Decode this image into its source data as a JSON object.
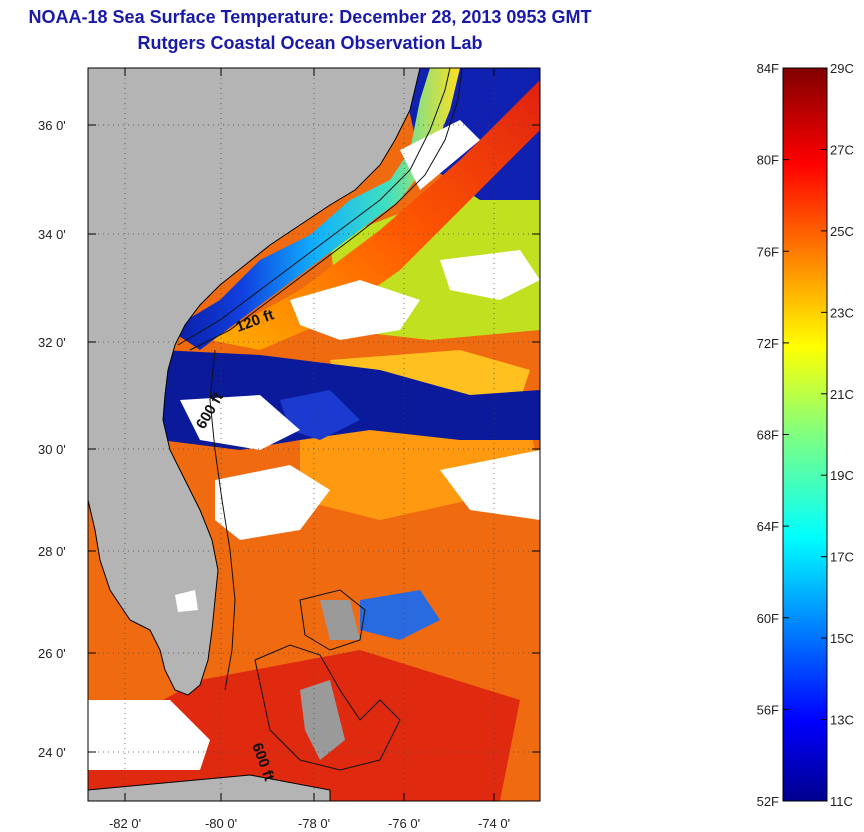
{
  "title": {
    "line1": "NOAA-18 Sea Surface Temperature:  December 28, 2013 0953 GMT",
    "line2": "Rutgers Coastal Ocean Observation Lab"
  },
  "map": {
    "lat_ticks": [
      "36 0'",
      "34 0'",
      "32 0'",
      "30 0'",
      "28 0'",
      "26 0'",
      "24 0'"
    ],
    "lon_ticks": [
      "-82 0'",
      "-80 0'",
      "-78 0'",
      "-76 0'",
      "-74 0'"
    ],
    "contour_labels": [
      "120 ft",
      "600 ft",
      "600 ft"
    ],
    "colors": {
      "land": "#b4b4b4",
      "cloud": "#ffffff",
      "cold": "#0a1a9a",
      "warm": "#e83a10"
    }
  },
  "colorbar": {
    "fahrenheit_labels": [
      "84F",
      "80F",
      "76F",
      "72F",
      "68F",
      "64F",
      "60F",
      "56F",
      "52F"
    ],
    "celsius_labels": [
      "29C",
      "27C",
      "25C",
      "23C",
      "21C",
      "19C",
      "17C",
      "15C",
      "13C",
      "11C"
    ],
    "range_c": [
      11,
      29
    ],
    "range_f": [
      52,
      84
    ],
    "colormap": "jet"
  }
}
